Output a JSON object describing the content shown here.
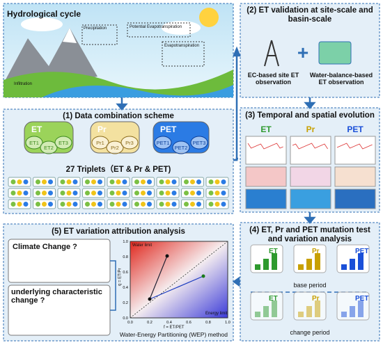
{
  "hydro": {
    "title": "Hydrological cycle",
    "labels": [
      "Precipitation",
      "Potential Evapotranspiration",
      "Evapotranspiration",
      "Infiltration"
    ]
  },
  "panel1": {
    "title": "(1) Data combination scheme",
    "groups": [
      {
        "name": "ET",
        "items": [
          "ET1",
          "ET2",
          "ET3"
        ]
      },
      {
        "name": "Pr",
        "items": [
          "Pr1",
          "Pr2",
          "Pr3"
        ]
      },
      {
        "name": "PET",
        "items": [
          "PET1",
          "PET2",
          "PET3"
        ]
      }
    ],
    "caption": "27 Triplets（ET & Pr & PET)"
  },
  "panel2": {
    "title": "(2) ET validation at site-scale and basin-scale",
    "items": [
      "EC-based site ET observation",
      "Water-balance-based ET observation"
    ]
  },
  "panel3": {
    "title": "(3) Temporal and spatial evolution",
    "columns": [
      "ET",
      "Pr",
      "PET"
    ]
  },
  "panel4": {
    "title": "(4) ET, Pr and PET mutation test and variation analysis",
    "labels": [
      "ET",
      "Pr",
      "PET"
    ],
    "periods": [
      "base period",
      "change period"
    ]
  },
  "panel5": {
    "title": "(5) ET variation attribution analysis",
    "causes": [
      "Climate Change ?",
      "underlying characteristic change ?"
    ],
    "plot": {
      "ylabel": "q = ET/Pr",
      "xlabel": "f = ET/PET",
      "xtick_labels": [
        "0.0",
        "0.2",
        "0.4",
        "0.6",
        "0.8",
        "1.0"
      ],
      "ytick_labels": [
        "0.0",
        "0.2",
        "0.4",
        "0.6",
        "0.8",
        "1.0"
      ],
      "regions": [
        "Water limit",
        "Energy limit"
      ]
    },
    "caption": "Water-Energy Partitioning (WEP) method"
  }
}
